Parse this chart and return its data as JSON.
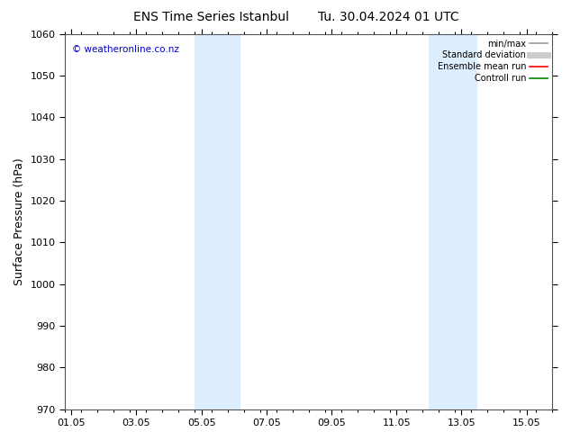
{
  "title_left": "ENS Time Series Istanbul",
  "title_right": "Tu. 30.04.2024 01 UTC",
  "ylabel": "Surface Pressure (hPa)",
  "ylim": [
    970,
    1060
  ],
  "yticks": [
    970,
    980,
    990,
    1000,
    1010,
    1020,
    1030,
    1040,
    1050,
    1060
  ],
  "xtick_labels": [
    "01.05",
    "03.05",
    "05.05",
    "07.05",
    "09.05",
    "11.05",
    "13.05",
    "15.05"
  ],
  "xtick_positions": [
    0,
    2,
    4,
    6,
    8,
    10,
    12,
    14
  ],
  "xlim": [
    -0.2,
    14.7
  ],
  "shaded_bands": [
    {
      "x_start": 3.8,
      "x_end": 5.2
    },
    {
      "x_start": 11.0,
      "x_end": 12.5
    }
  ],
  "band_color": "#ddeeff",
  "watermark_text": "© weatheronline.co.nz",
  "watermark_color": "#0000cc",
  "legend_items": [
    {
      "label": "min/max",
      "color": "#999999",
      "lw": 1.2
    },
    {
      "label": "Standard deviation",
      "color": "#cccccc",
      "lw": 5
    },
    {
      "label": "Ensemble mean run",
      "color": "#ff0000",
      "lw": 1.2
    },
    {
      "label": "Controll run",
      "color": "#008800",
      "lw": 1.2
    }
  ],
  "bg_color": "#ffffff",
  "spine_color": "#555555",
  "title_fontsize": 10,
  "tick_fontsize": 8,
  "ylabel_fontsize": 9,
  "watermark_fontsize": 7.5,
  "legend_fontsize": 7
}
